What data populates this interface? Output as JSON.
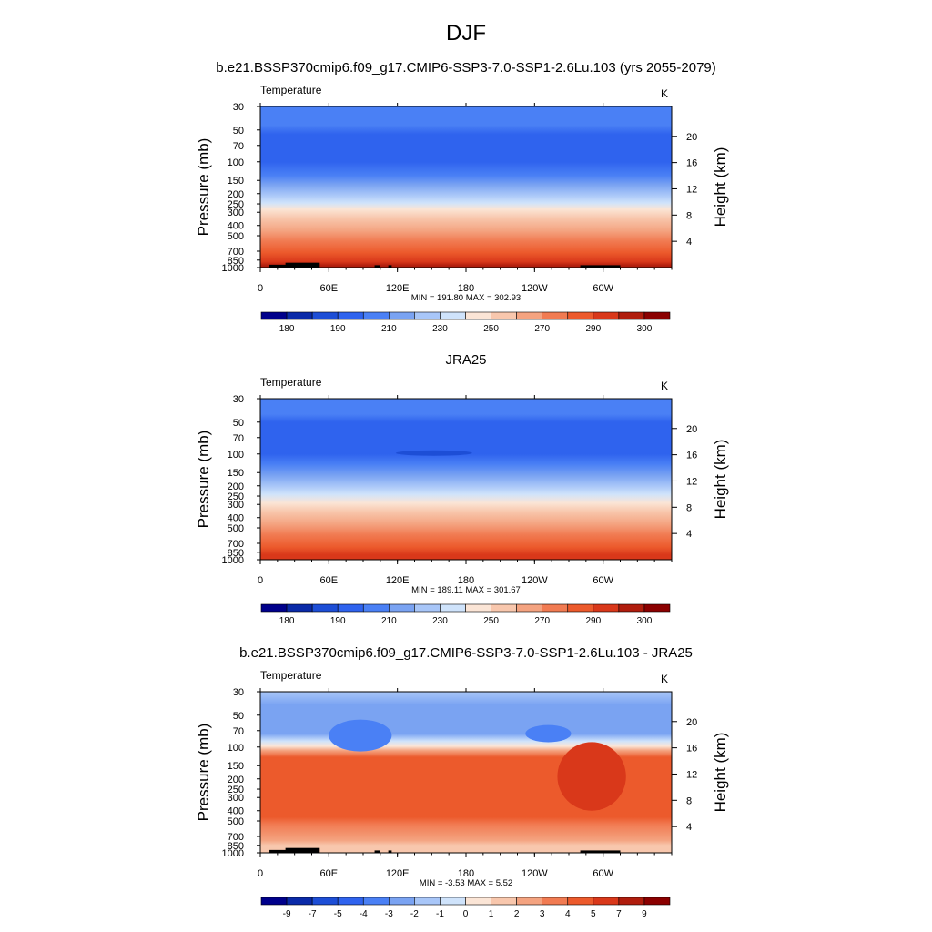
{
  "figure": {
    "title": "DJF",
    "subtitle": "b.e21.BSSP370cmip6.f09_g17.CMIP6-SSP3-7.0-SSP1-2.6Lu.103 (yrs 2055-2079)"
  },
  "chart_data": [
    {
      "type": "heatmap",
      "panel_title": "",
      "left_label": "Temperature",
      "right_label": "K",
      "ylabel": "Pressure (mb)",
      "ylabel_right": "Height (km)",
      "x_ticks": [
        "0",
        "60E",
        "120E",
        "180",
        "120W",
        "60W"
      ],
      "p_ticks": [
        "30",
        "50",
        "70",
        "100",
        "150",
        "200",
        "250",
        "300",
        "400",
        "500",
        "700",
        "850",
        "1000"
      ],
      "height_ticks": [
        "4",
        "8",
        "12",
        "16",
        "20"
      ],
      "stats": "MIN = 191.80  MAX = 302.93",
      "colorbar": {
        "labels": [
          "180",
          "190",
          "210",
          "230",
          "250",
          "270",
          "290",
          "300"
        ],
        "colors": [
          "#00008b",
          "#0a2aa8",
          "#1d4ed6",
          "#2f63ee",
          "#4a80f5",
          "#7aa3f2",
          "#a8c6f8",
          "#cfe3fb",
          "#fbe5d6",
          "#f8c7ad",
          "#f4a380",
          "#f17b52",
          "#ec5a2c",
          "#d9381a",
          "#b01d0d",
          "#8b0000"
        ]
      },
      "levels": [
        {
          "p": 30,
          "c": "#4a80f5"
        },
        {
          "p": 45,
          "c": "#4a80f5"
        },
        {
          "p": 55,
          "c": "#2f63ee"
        },
        {
          "p": 100,
          "c": "#2f63ee"
        },
        {
          "p": 135,
          "c": "#4a80f5"
        },
        {
          "p": 165,
          "c": "#7aa3f2"
        },
        {
          "p": 205,
          "c": "#a8c6f8"
        },
        {
          "p": 245,
          "c": "#cfe3fb"
        },
        {
          "p": 280,
          "c": "#fbe5d6"
        },
        {
          "p": 340,
          "c": "#f8c7ad"
        },
        {
          "p": 450,
          "c": "#f4a380"
        },
        {
          "p": 560,
          "c": "#f17b52"
        },
        {
          "p": 720,
          "c": "#ec5a2c"
        },
        {
          "p": 880,
          "c": "#d9381a"
        },
        {
          "p": 960,
          "c": "#b01d0d"
        },
        {
          "p": 1000,
          "c": "#b01d0d"
        }
      ],
      "topography": true
    },
    {
      "type": "heatmap",
      "panel_title": "JRA25",
      "left_label": "Temperature",
      "right_label": "K",
      "ylabel": "Pressure (mb)",
      "ylabel_right": "Height (km)",
      "x_ticks": [
        "0",
        "60E",
        "120E",
        "180",
        "120W",
        "60W"
      ],
      "p_ticks": [
        "30",
        "50",
        "70",
        "100",
        "150",
        "200",
        "250",
        "300",
        "400",
        "500",
        "700",
        "850",
        "1000"
      ],
      "height_ticks": [
        "4",
        "8",
        "12",
        "16",
        "20"
      ],
      "stats": "MIN = 189.11  MAX = 301.67",
      "colorbar": {
        "labels": [
          "180",
          "190",
          "210",
          "230",
          "250",
          "270",
          "290",
          "300"
        ],
        "colors": [
          "#00008b",
          "#0a2aa8",
          "#1d4ed6",
          "#2f63ee",
          "#4a80f5",
          "#7aa3f2",
          "#a8c6f8",
          "#cfe3fb",
          "#fbe5d6",
          "#f8c7ad",
          "#f4a380",
          "#f17b52",
          "#ec5a2c",
          "#d9381a",
          "#b01d0d",
          "#8b0000"
        ]
      },
      "levels": [
        {
          "p": 30,
          "c": "#4a80f5"
        },
        {
          "p": 42,
          "c": "#4a80f5"
        },
        {
          "p": 50,
          "c": "#2f63ee"
        },
        {
          "p": 100,
          "c": "#2f63ee"
        },
        {
          "p": 125,
          "c": "#4a80f5"
        },
        {
          "p": 160,
          "c": "#7aa3f2"
        },
        {
          "p": 200,
          "c": "#a8c6f8"
        },
        {
          "p": 240,
          "c": "#cfe3fb"
        },
        {
          "p": 290,
          "c": "#fbe5d6"
        },
        {
          "p": 350,
          "c": "#f8c7ad"
        },
        {
          "p": 460,
          "c": "#f4a380"
        },
        {
          "p": 580,
          "c": "#f17b52"
        },
        {
          "p": 760,
          "c": "#ec5a2c"
        },
        {
          "p": 900,
          "c": "#d9381a"
        },
        {
          "p": 1000,
          "c": "#d9381a"
        }
      ],
      "topography": false
    },
    {
      "type": "heatmap",
      "panel_title": "b.e21.BSSP370cmip6.f09_g17.CMIP6-SSP3-7.0-SSP1-2.6Lu.103 - JRA25",
      "left_label": "Temperature",
      "right_label": "K",
      "ylabel": "Pressure (mb)",
      "ylabel_right": "Height (km)",
      "x_ticks": [
        "0",
        "60E",
        "120E",
        "180",
        "120W",
        "60W"
      ],
      "p_ticks": [
        "30",
        "50",
        "70",
        "100",
        "150",
        "200",
        "250",
        "300",
        "400",
        "500",
        "700",
        "850",
        "1000"
      ],
      "height_ticks": [
        "4",
        "8",
        "12",
        "16",
        "20"
      ],
      "stats": "MIN =  -3.53  MAX =   5.52",
      "colorbar": {
        "labels": [
          "-9",
          "-7",
          "-5",
          "-4",
          "-3",
          "-2",
          "-1",
          "0",
          "1",
          "2",
          "3",
          "4",
          "5",
          "7",
          "9"
        ],
        "colors": [
          "#00008b",
          "#0a2aa8",
          "#1d4ed6",
          "#2f63ee",
          "#4a80f5",
          "#7aa3f2",
          "#a8c6f8",
          "#cfe3fb",
          "#fbe5d6",
          "#f8c7ad",
          "#f4a380",
          "#f17b52",
          "#ec5a2c",
          "#d9381a",
          "#b01d0d",
          "#8b0000"
        ]
      },
      "levels": [
        {
          "p": 30,
          "c": "#a8c6f8"
        },
        {
          "p": 40,
          "c": "#7aa3f2"
        },
        {
          "p": 75,
          "c": "#7aa3f2"
        },
        {
          "p": 88,
          "c": "#cfe3fb"
        },
        {
          "p": 98,
          "c": "#fbe5d6"
        },
        {
          "p": 108,
          "c": "#f4a380"
        },
        {
          "p": 125,
          "c": "#ec5a2c"
        },
        {
          "p": 460,
          "c": "#ec5a2c"
        },
        {
          "p": 540,
          "c": "#f17b52"
        },
        {
          "p": 760,
          "c": "#f4a380"
        },
        {
          "p": 850,
          "c": "#f8c7ad"
        },
        {
          "p": 1000,
          "c": "#f8c7ad"
        }
      ],
      "topography": true
    }
  ]
}
